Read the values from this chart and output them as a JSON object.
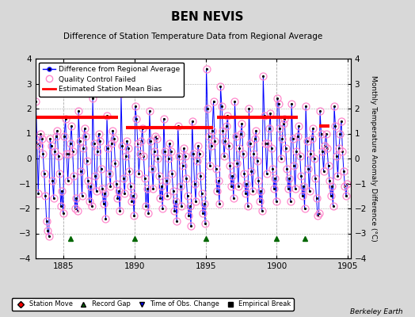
{
  "title": "BEN NEVIS",
  "subtitle": "Difference of Station Temperature Data from Regional Average",
  "ylabel_right": "Monthly Temperature Anomaly Difference (°C)",
  "xlim": [
    1883.0,
    1905.2
  ],
  "ylim": [
    -4,
    4
  ],
  "yticks": [
    -4,
    -3,
    -2,
    -1,
    0,
    1,
    2,
    3,
    4
  ],
  "xticks": [
    1885,
    1890,
    1895,
    1900,
    1905
  ],
  "background_color": "#d8d8d8",
  "plot_bg_color": "#ffffff",
  "grid_color": "#aaaaaa",
  "credit": "Berkeley Earth",
  "bias_segments": [
    {
      "x_start": 1883.0,
      "x_end": 1888.8,
      "y": 1.65
    },
    {
      "x_start": 1889.4,
      "x_end": 1895.5,
      "y": 1.25
    },
    {
      "x_start": 1895.8,
      "x_end": 1901.5,
      "y": 1.65
    },
    {
      "x_start": 1903.0,
      "x_end": 1903.7,
      "y": 1.3
    }
  ],
  "green_triangle_x": [
    1885.5,
    1890.0,
    1895.0,
    1900.0,
    1902.0
  ],
  "data": [
    [
      1883.042,
      2.3
    ],
    [
      1883.125,
      0.6
    ],
    [
      1883.208,
      -1.4
    ],
    [
      1883.292,
      0.5
    ],
    [
      1883.375,
      1.0
    ],
    [
      1883.458,
      0.8
    ],
    [
      1883.542,
      0.2
    ],
    [
      1883.625,
      -0.6
    ],
    [
      1883.708,
      -1.5
    ],
    [
      1883.792,
      -2.5
    ],
    [
      1883.875,
      -2.9
    ],
    [
      1883.958,
      -3.1
    ],
    [
      1884.042,
      0.8
    ],
    [
      1884.125,
      0.5
    ],
    [
      1884.208,
      -0.9
    ],
    [
      1884.292,
      -1.6
    ],
    [
      1884.375,
      0.3
    ],
    [
      1884.458,
      0.9
    ],
    [
      1884.542,
      1.1
    ],
    [
      1884.625,
      0.1
    ],
    [
      1884.708,
      -0.6
    ],
    [
      1884.792,
      -1.9
    ],
    [
      1884.875,
      -1.3
    ],
    [
      1884.958,
      -2.2
    ],
    [
      1885.042,
      0.9
    ],
    [
      1885.125,
      1.6
    ],
    [
      1885.208,
      0.2
    ],
    [
      1885.292,
      -0.9
    ],
    [
      1885.375,
      0.2
    ],
    [
      1885.458,
      0.6
    ],
    [
      1885.542,
      1.3
    ],
    [
      1885.625,
      0.3
    ],
    [
      1885.708,
      -0.7
    ],
    [
      1885.792,
      -2.0
    ],
    [
      1885.875,
      -1.6
    ],
    [
      1885.958,
      -2.1
    ],
    [
      1886.042,
      1.9
    ],
    [
      1886.125,
      0.7
    ],
    [
      1886.208,
      -0.5
    ],
    [
      1886.292,
      -1.5
    ],
    [
      1886.375,
      0.4
    ],
    [
      1886.458,
      1.2
    ],
    [
      1886.542,
      0.9
    ],
    [
      1886.625,
      -0.1
    ],
    [
      1886.708,
      -0.9
    ],
    [
      1886.792,
      -1.7
    ],
    [
      1886.875,
      -1.1
    ],
    [
      1886.958,
      -1.9
    ],
    [
      1887.042,
      2.4
    ],
    [
      1887.125,
      0.6
    ],
    [
      1887.208,
      -0.7
    ],
    [
      1887.292,
      -1.3
    ],
    [
      1887.375,
      0.3
    ],
    [
      1887.458,
      1.0
    ],
    [
      1887.542,
      0.7
    ],
    [
      1887.625,
      -0.4
    ],
    [
      1887.708,
      -1.2
    ],
    [
      1887.792,
      -1.8
    ],
    [
      1887.875,
      -1.4
    ],
    [
      1887.958,
      -2.4
    ],
    [
      1888.042,
      1.7
    ],
    [
      1888.125,
      0.4
    ],
    [
      1888.208,
      -0.6
    ],
    [
      1888.292,
      -1.1
    ],
    [
      1888.375,
      0.6
    ],
    [
      1888.458,
      1.1
    ],
    [
      1888.542,
      0.8
    ],
    [
      1888.625,
      -0.2
    ],
    [
      1888.708,
      -1.0
    ],
    [
      1888.792,
      -1.6
    ],
    [
      1888.875,
      -1.3
    ],
    [
      1888.958,
      -2.1
    ],
    [
      1889.042,
      2.6
    ],
    [
      1889.125,
      0.5
    ],
    [
      1889.208,
      -0.8
    ],
    [
      1889.292,
      -1.4
    ],
    [
      1889.375,
      0.1
    ],
    [
      1889.458,
      0.7
    ],
    [
      1889.542,
      0.4
    ],
    [
      1889.625,
      -0.5
    ],
    [
      1889.708,
      -1.1
    ],
    [
      1889.792,
      -1.7
    ],
    [
      1889.875,
      -1.5
    ],
    [
      1889.958,
      -2.3
    ],
    [
      1890.042,
      2.1
    ],
    [
      1890.125,
      1.6
    ],
    [
      1890.208,
      0.6
    ],
    [
      1890.292,
      -0.6
    ],
    [
      1890.375,
      0.2
    ],
    [
      1890.458,
      0.7
    ],
    [
      1890.542,
      1.2
    ],
    [
      1890.625,
      0.1
    ],
    [
      1890.708,
      -0.8
    ],
    [
      1890.792,
      -1.9
    ],
    [
      1890.875,
      -1.2
    ],
    [
      1890.958,
      -2.2
    ],
    [
      1891.042,
      1.9
    ],
    [
      1891.125,
      0.7
    ],
    [
      1891.208,
      -0.4
    ],
    [
      1891.292,
      -1.2
    ],
    [
      1891.375,
      0.3
    ],
    [
      1891.458,
      0.9
    ],
    [
      1891.542,
      0.8
    ],
    [
      1891.625,
      0.0
    ],
    [
      1891.708,
      -0.7
    ],
    [
      1891.792,
      -1.6
    ],
    [
      1891.875,
      -1.1
    ],
    [
      1891.958,
      -2.0
    ],
    [
      1892.042,
      1.6
    ],
    [
      1892.125,
      0.3
    ],
    [
      1892.208,
      -0.9
    ],
    [
      1892.292,
      -1.5
    ],
    [
      1892.375,
      0.0
    ],
    [
      1892.458,
      0.6
    ],
    [
      1892.542,
      0.3
    ],
    [
      1892.625,
      -0.6
    ],
    [
      1892.708,
      -1.3
    ],
    [
      1892.792,
      -2.1
    ],
    [
      1892.875,
      -1.7
    ],
    [
      1892.958,
      -2.5
    ],
    [
      1893.042,
      1.3
    ],
    [
      1893.125,
      0.1
    ],
    [
      1893.208,
      -1.1
    ],
    [
      1893.292,
      -1.9
    ],
    [
      1893.375,
      -0.3
    ],
    [
      1893.458,
      0.4
    ],
    [
      1893.542,
      0.1
    ],
    [
      1893.625,
      -0.8
    ],
    [
      1893.708,
      -1.5
    ],
    [
      1893.792,
      -2.3
    ],
    [
      1893.875,
      -1.9
    ],
    [
      1893.958,
      -2.7
    ],
    [
      1894.042,
      1.5
    ],
    [
      1894.125,
      0.2
    ],
    [
      1894.208,
      -1.0
    ],
    [
      1894.292,
      -1.7
    ],
    [
      1894.375,
      -0.1
    ],
    [
      1894.458,
      0.5
    ],
    [
      1894.542,
      0.2
    ],
    [
      1894.625,
      -0.7
    ],
    [
      1894.708,
      -1.4
    ],
    [
      1894.792,
      -2.2
    ],
    [
      1894.875,
      -1.8
    ],
    [
      1894.958,
      -2.6
    ],
    [
      1895.042,
      3.6
    ],
    [
      1895.125,
      2.0
    ],
    [
      1895.208,
      0.9
    ],
    [
      1895.292,
      -0.3
    ],
    [
      1895.375,
      0.5
    ],
    [
      1895.458,
      1.1
    ],
    [
      1895.542,
      2.3
    ],
    [
      1895.625,
      0.7
    ],
    [
      1895.708,
      -0.4
    ],
    [
      1895.792,
      -1.3
    ],
    [
      1895.875,
      -0.9
    ],
    [
      1895.958,
      -1.8
    ],
    [
      1896.042,
      2.9
    ],
    [
      1896.125,
      2.1
    ],
    [
      1896.208,
      1.1
    ],
    [
      1896.292,
      0.1
    ],
    [
      1896.375,
      0.7
    ],
    [
      1896.458,
      1.3
    ],
    [
      1896.542,
      1.7
    ],
    [
      1896.625,
      0.5
    ],
    [
      1896.708,
      -0.3
    ],
    [
      1896.792,
      -1.1
    ],
    [
      1896.875,
      -0.7
    ],
    [
      1896.958,
      -1.6
    ],
    [
      1897.042,
      2.3
    ],
    [
      1897.125,
      0.9
    ],
    [
      1897.208,
      -0.2
    ],
    [
      1897.292,
      -1.1
    ],
    [
      1897.375,
      0.4
    ],
    [
      1897.458,
      1.0
    ],
    [
      1897.542,
      1.4
    ],
    [
      1897.625,
      0.2
    ],
    [
      1897.708,
      -0.6
    ],
    [
      1897.792,
      -1.4
    ],
    [
      1897.875,
      -1.0
    ],
    [
      1897.958,
      -1.9
    ],
    [
      1898.042,
      2.0
    ],
    [
      1898.125,
      0.6
    ],
    [
      1898.208,
      -0.5
    ],
    [
      1898.292,
      -1.3
    ],
    [
      1898.375,
      0.2
    ],
    [
      1898.458,
      0.8
    ],
    [
      1898.542,
      1.1
    ],
    [
      1898.625,
      -0.1
    ],
    [
      1898.708,
      -0.9
    ],
    [
      1898.792,
      -1.7
    ],
    [
      1898.875,
      -1.3
    ],
    [
      1898.958,
      -2.1
    ],
    [
      1899.042,
      3.3
    ],
    [
      1899.125,
      1.7
    ],
    [
      1899.208,
      0.6
    ],
    [
      1899.292,
      -0.6
    ],
    [
      1899.375,
      0.6
    ],
    [
      1899.458,
      1.2
    ],
    [
      1899.542,
      1.8
    ],
    [
      1899.625,
      0.4
    ],
    [
      1899.708,
      -0.4
    ],
    [
      1899.792,
      -1.2
    ],
    [
      1899.875,
      -0.8
    ],
    [
      1899.958,
      -1.7
    ],
    [
      1900.042,
      2.4
    ],
    [
      1900.125,
      2.2
    ],
    [
      1900.208,
      1.2
    ],
    [
      1900.292,
      0.0
    ],
    [
      1900.375,
      0.8
    ],
    [
      1900.458,
      1.4
    ],
    [
      1900.542,
      1.6
    ],
    [
      1900.625,
      0.4
    ],
    [
      1900.708,
      -0.4
    ],
    [
      1900.792,
      -1.2
    ],
    [
      1900.875,
      -0.8
    ],
    [
      1900.958,
      -1.7
    ],
    [
      1901.042,
      2.2
    ],
    [
      1901.125,
      0.8
    ],
    [
      1901.208,
      -0.3
    ],
    [
      1901.292,
      -1.2
    ],
    [
      1901.375,
      0.3
    ],
    [
      1901.458,
      0.9
    ],
    [
      1901.542,
      1.3
    ],
    [
      1901.625,
      0.1
    ],
    [
      1901.708,
      -0.7
    ],
    [
      1901.792,
      -1.5
    ],
    [
      1901.875,
      -1.1
    ],
    [
      1901.958,
      -2.0
    ],
    [
      1902.042,
      2.1
    ],
    [
      1902.125,
      0.7
    ],
    [
      1902.208,
      -0.4
    ],
    [
      1902.292,
      -1.3
    ],
    [
      1902.375,
      0.2
    ],
    [
      1902.458,
      0.8
    ],
    [
      1902.542,
      1.2
    ],
    [
      1902.625,
      0.0
    ],
    [
      1902.708,
      -0.8
    ],
    [
      1902.792,
      -1.6
    ],
    [
      1902.875,
      -2.3
    ],
    [
      1902.958,
      -2.2
    ],
    [
      1903.042,
      1.9
    ],
    [
      1903.125,
      1.0
    ],
    [
      1903.208,
      0.3
    ],
    [
      1903.292,
      -0.5
    ],
    [
      1903.375,
      0.5
    ],
    [
      1903.458,
      1.0
    ],
    [
      1903.542,
      0.4
    ],
    [
      1903.625,
      -0.3
    ],
    [
      1903.708,
      -0.9
    ],
    [
      1903.792,
      -1.5
    ],
    [
      1903.875,
      -1.1
    ],
    [
      1903.958,
      -1.9
    ],
    [
      1904.042,
      2.1
    ],
    [
      1904.125,
      1.3
    ],
    [
      1904.208,
      0.1
    ],
    [
      1904.292,
      -0.7
    ],
    [
      1904.375,
      0.4
    ],
    [
      1904.458,
      1.0
    ],
    [
      1904.542,
      1.5
    ],
    [
      1904.625,
      0.3
    ],
    [
      1904.708,
      -0.5
    ],
    [
      1904.792,
      -1.1
    ],
    [
      1904.875,
      -1.5
    ],
    [
      1904.958,
      -1.0
    ]
  ]
}
